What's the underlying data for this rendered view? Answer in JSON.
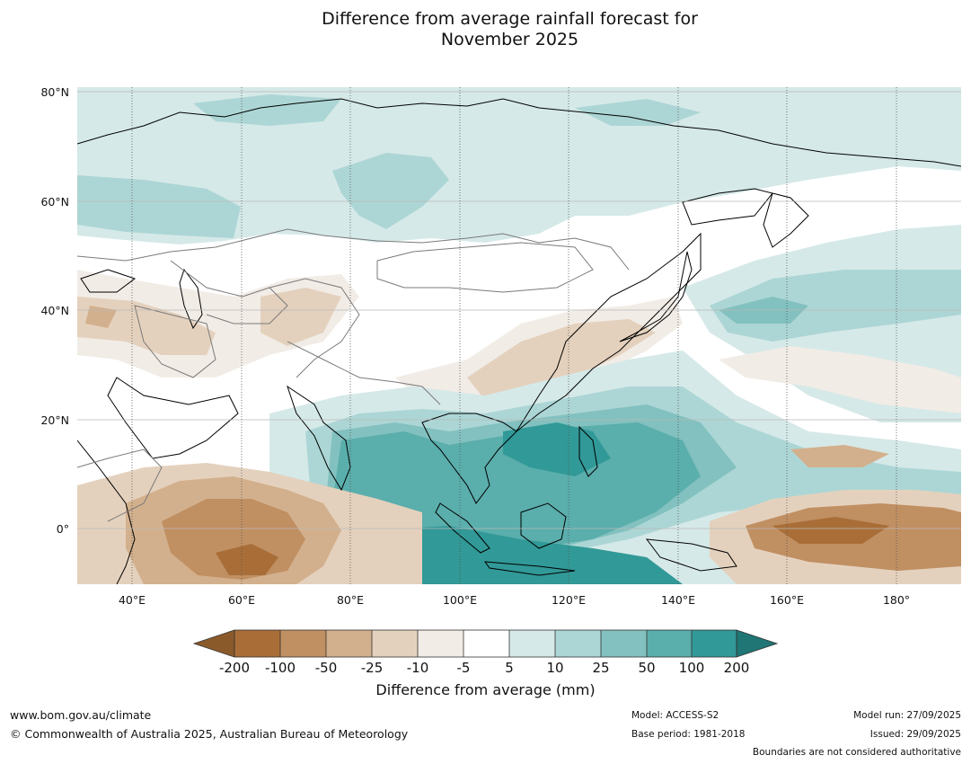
{
  "title": {
    "line1": "Difference from average rainfall forecast for",
    "line2": "November 2025"
  },
  "axes": {
    "lat_labels": [
      "80°N",
      "60°N",
      "40°N",
      "20°N",
      "0°"
    ],
    "lat_values": [
      80,
      60,
      40,
      20,
      0
    ],
    "lon_labels": [
      "40°E",
      "60°E",
      "80°E",
      "100°E",
      "120°E",
      "140°E",
      "160°E",
      "180°"
    ],
    "lon_values": [
      40,
      60,
      80,
      100,
      120,
      140,
      160,
      180
    ],
    "lon_range": [
      30,
      192
    ],
    "lat_range": [
      -10,
      81
    ]
  },
  "colorbar": {
    "title": "Difference from average (mm)",
    "tick_labels": [
      "-200",
      "-100",
      "-50",
      "-25",
      "-10",
      "-5",
      "5",
      "10",
      "25",
      "50",
      "100",
      "200"
    ],
    "colors": [
      "#a96e38",
      "#c08f62",
      "#d3b08d",
      "#e4d1bd",
      "#f1ece6",
      "#ffffff",
      "#d5e9e8",
      "#acd6d5",
      "#82c1bf",
      "#5aaeac",
      "#319997"
    ],
    "extend_low_color": "#8b5a2b",
    "extend_high_color": "#1f7674"
  },
  "footer": {
    "website": "www.bom.gov.au/climate",
    "copyright": "© Commonwealth of Australia 2025, Australian Bureau of Meteorology",
    "model": "Model: ACCESS-S2",
    "base_period": "Base period: 1981-2018",
    "model_run": "Model run: 27/09/2025",
    "issued": "Issued: 29/09/2025",
    "disclaimer": "Boundaries are not considered authoritative"
  }
}
